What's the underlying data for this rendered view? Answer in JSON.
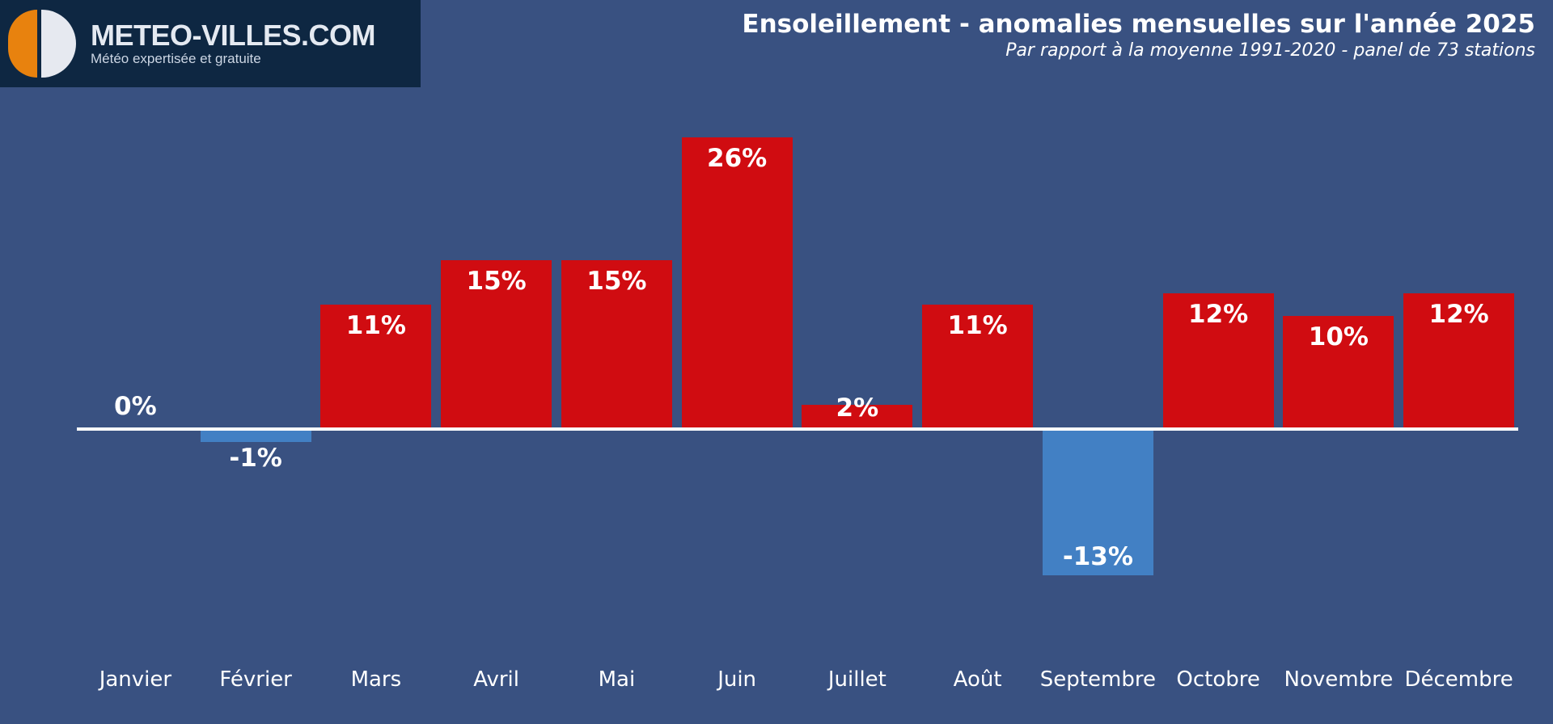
{
  "logo": {
    "brand": "METEO-VILLES.COM",
    "tagline": "Météo expertisée et gratuite",
    "colors": {
      "background": "#0e2742",
      "orange": "#e8820e",
      "light": "#e6e9f0"
    }
  },
  "header": {
    "title": "Ensoleillement - anomalies mensuelles sur l'année 2025",
    "subtitle": "Par rapport à la moyenne 1991-2020 - panel de 73 stations"
  },
  "chart_data": {
    "type": "bar",
    "title": "Ensoleillement - anomalies mensuelles sur l'année 2025",
    "subtitle": "Par rapport à la moyenne 1991-2020 - panel de 73 stations",
    "categories": [
      "Janvier",
      "Février",
      "Mars",
      "Avril",
      "Mai",
      "Juin",
      "Juillet",
      "Août",
      "Septembre",
      "Octobre",
      "Novembre",
      "Décembre"
    ],
    "values": [
      0,
      -1,
      11,
      15,
      15,
      26,
      2,
      11,
      -13,
      12,
      10,
      12
    ],
    "value_labels": [
      "0%",
      "-1%",
      "11%",
      "15%",
      "15%",
      "26%",
      "2%",
      "11%",
      "-13%",
      "12%",
      "10%",
      "12%"
    ],
    "unit": "%",
    "ylim": [
      -16,
      29
    ],
    "grid": false,
    "legend": "none",
    "baseline_value": 0,
    "colors": {
      "positive": "#d00c11",
      "negative": "#4280c4",
      "background": "#395181",
      "baseline": "#ffffff",
      "label_text": "#ffffff"
    }
  }
}
